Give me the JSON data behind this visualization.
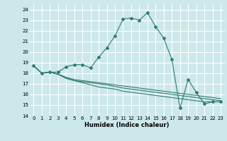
{
  "title": "",
  "xlabel": "Humidex (Indice chaleur)",
  "xlim": [
    -0.5,
    23.5
  ],
  "ylim": [
    14,
    24.5
  ],
  "yticks": [
    14,
    15,
    16,
    17,
    18,
    19,
    20,
    21,
    22,
    23,
    24
  ],
  "xticks": [
    0,
    1,
    2,
    3,
    4,
    5,
    6,
    7,
    8,
    9,
    10,
    11,
    12,
    13,
    14,
    15,
    16,
    17,
    18,
    19,
    20,
    21,
    22,
    23
  ],
  "background_color": "#cce8ea",
  "grid_color": "#ffffff",
  "line_color": "#2e7d6e",
  "main_line": [
    18.7,
    18.0,
    18.1,
    18.1,
    18.6,
    18.8,
    18.8,
    18.5,
    19.5,
    20.4,
    21.5,
    23.1,
    23.2,
    23.0,
    23.7,
    22.4,
    21.3,
    19.3,
    14.7,
    17.4,
    16.2,
    15.1,
    15.3,
    15.3
  ],
  "line2": [
    18.7,
    18.0,
    18.1,
    17.9,
    17.6,
    17.4,
    17.3,
    17.2,
    17.1,
    17.0,
    16.9,
    16.8,
    16.7,
    16.6,
    16.5,
    16.4,
    16.3,
    16.2,
    16.1,
    16.0,
    15.9,
    15.8,
    15.7,
    15.6
  ],
  "line3": [
    18.7,
    18.0,
    18.1,
    17.9,
    17.6,
    17.3,
    17.2,
    17.1,
    17.0,
    16.9,
    16.75,
    16.6,
    16.5,
    16.4,
    16.3,
    16.2,
    16.1,
    16.0,
    15.9,
    15.8,
    15.7,
    15.6,
    15.5,
    15.4
  ],
  "line4": [
    18.7,
    18.0,
    18.1,
    17.9,
    17.5,
    17.3,
    17.1,
    16.9,
    16.7,
    16.6,
    16.5,
    16.3,
    16.2,
    16.1,
    16.0,
    15.9,
    15.8,
    15.7,
    15.6,
    15.5,
    15.4,
    15.3,
    15.3,
    15.3
  ],
  "marker": "D",
  "markersize": 2.0,
  "linewidth": 0.8,
  "tick_fontsize": 5.0,
  "xlabel_fontsize": 6.0
}
